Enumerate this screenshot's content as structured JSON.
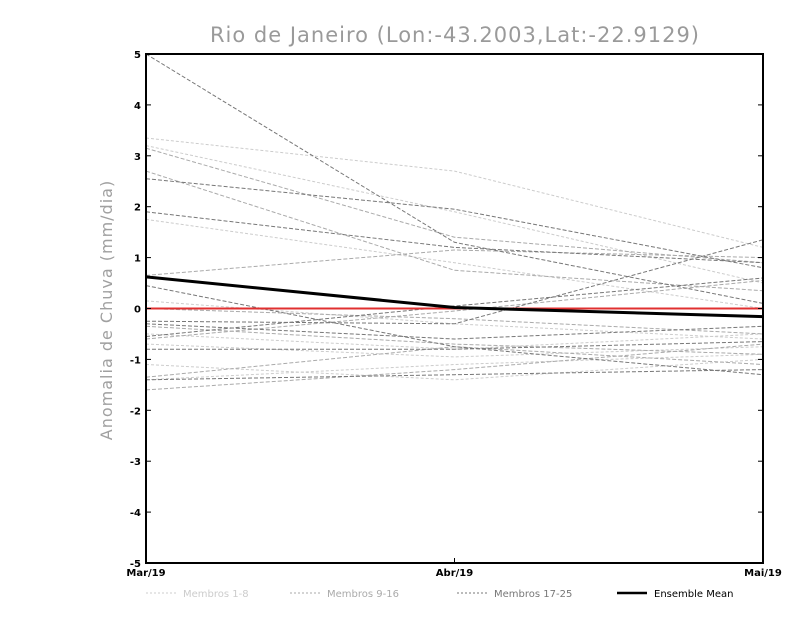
{
  "chart_data": {
    "type": "line",
    "title": "Rio de Janeiro (Lon:-43.2003,Lat:-22.9129)",
    "xlabel": "",
    "ylabel": "Anomalia de Chuva (mm/dia)",
    "categories": [
      "Mar/19",
      "Abr/19",
      "Mai/19"
    ],
    "y_ticks": [
      "5",
      "4",
      "3",
      "2",
      "1",
      "0",
      "-1",
      "-2",
      "-3",
      "-4",
      "-5"
    ],
    "ylim": [
      -5,
      5
    ],
    "zero_line_color": "#e03030",
    "groups": [
      {
        "name": "Membros 1-8",
        "color": "#cccccc",
        "dash": "3,2",
        "width": 1,
        "series": [
          [
            3.35,
            2.7,
            1.2
          ],
          [
            3.2,
            1.9,
            0.5
          ],
          [
            1.75,
            0.9,
            0.0
          ],
          [
            0.15,
            -0.3,
            -0.6
          ],
          [
            -0.5,
            -0.8,
            -0.5
          ],
          [
            -0.7,
            -0.95,
            -0.75
          ],
          [
            -1.1,
            -1.4,
            -1.0
          ],
          [
            -1.4,
            -1.1,
            -0.9
          ]
        ]
      },
      {
        "name": "Membros 9-16",
        "color": "#aaaaaa",
        "dash": "4,2",
        "width": 1,
        "series": [
          [
            3.15,
            1.4,
            0.9
          ],
          [
            2.7,
            0.75,
            0.35
          ],
          [
            0.65,
            1.15,
            1.0
          ],
          [
            0.0,
            -0.2,
            -0.5
          ],
          [
            -0.35,
            -0.7,
            -0.9
          ],
          [
            -0.6,
            -0.05,
            0.55
          ],
          [
            -1.35,
            -0.75,
            -1.1
          ],
          [
            -1.6,
            -1.2,
            -0.7
          ]
        ]
      },
      {
        "name": "Membros 17-25",
        "color": "#777777",
        "dash": "4,2",
        "width": 1,
        "series": [
          [
            5.0,
            1.3,
            0.1
          ],
          [
            2.55,
            1.95,
            0.8
          ],
          [
            1.9,
            1.2,
            0.9
          ],
          [
            0.45,
            -0.75,
            -1.3
          ],
          [
            -0.25,
            -0.3,
            1.35
          ],
          [
            -0.3,
            -0.6,
            -0.35
          ],
          [
            -0.55,
            0.05,
            0.6
          ],
          [
            -0.8,
            -0.8,
            -0.65
          ],
          [
            -1.4,
            -1.3,
            -1.2
          ]
        ]
      }
    ],
    "ensemble_mean": {
      "name": "Ensemble Mean",
      "color": "#000000",
      "values": [
        0.62,
        0.02,
        -0.16
      ]
    }
  }
}
